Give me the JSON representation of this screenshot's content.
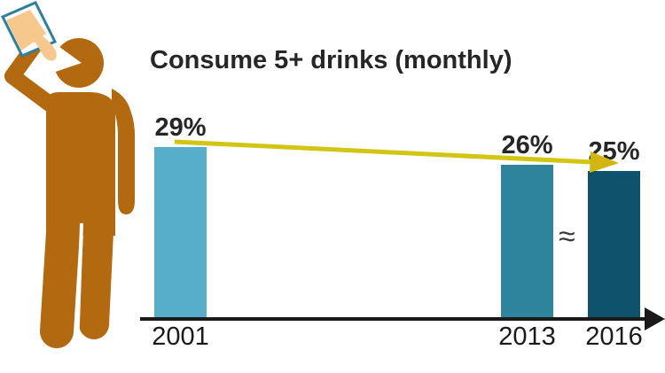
{
  "chart": {
    "title": "Consume 5+ drinks (monthly)"
  },
  "chart_data": {
    "type": "bar",
    "title": "Consume 5+ drinks (monthly)",
    "categories": [
      "2001",
      "2013",
      "2016"
    ],
    "values": [
      29,
      26,
      25
    ],
    "value_labels": [
      "29%",
      "26%",
      "25%"
    ],
    "xlabel": "",
    "ylabel": "",
    "ylim": [
      0,
      32
    ],
    "grid": false,
    "legend": false,
    "bar_colors": [
      "#57aecb",
      "#2e839d",
      "#0e526c"
    ],
    "axis_break_symbol": "≈",
    "annotations": [
      "downward trend arrow from 29% (2001) to top of 2016 bar",
      "≈ symbol between 2013 and 2016 bars indicating compressed x-axis",
      "x-axis drawn as black arrow pointing right"
    ]
  },
  "icons": {
    "person": "drinking-person-icon",
    "trend_arrow": "trend-arrow-icon",
    "axis_arrowhead": "x-axis-arrowhead-icon"
  },
  "colors": {
    "bar_2001": "#57aecb",
    "bar_2013": "#2e839d",
    "bar_2016": "#0e526c",
    "person": "#b2690f",
    "glass_border": "#2e7f9c",
    "liquid": "#f6c88e",
    "trend_arrow": "#d2c513",
    "trend_arrow_head": "#d2b511",
    "axis": "#1a1a1a",
    "text": "#262626"
  }
}
